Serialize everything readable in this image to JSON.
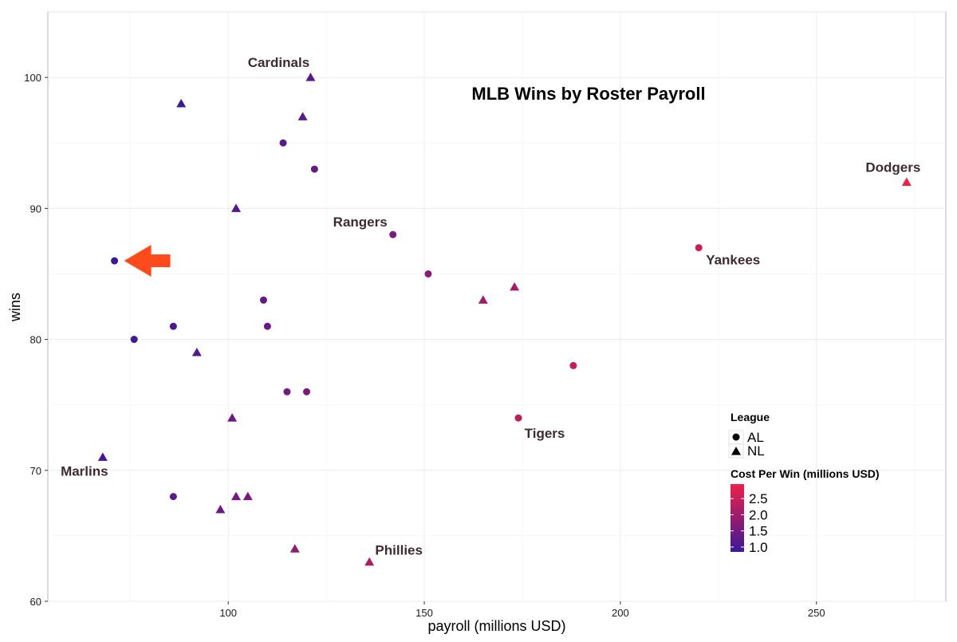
{
  "chart_data": {
    "type": "scatter",
    "title": "MLB Wins by Roster Payroll",
    "xlabel": "payroll (millions USD)",
    "ylabel": "wins",
    "xlim": [
      54,
      283
    ],
    "ylim": [
      60,
      105
    ],
    "x_ticks": [
      100,
      150,
      200,
      250
    ],
    "x_tick_labels": [
      "100",
      "150",
      "200",
      "250"
    ],
    "y_ticks": [
      60,
      70,
      80,
      90,
      100
    ],
    "y_tick_labels": [
      "60",
      "70",
      "80",
      "90",
      "100"
    ],
    "grid": true,
    "legend_placement": "bottom-right",
    "shape_legend": {
      "title": "League",
      "items": [
        {
          "label": "AL",
          "shape": "circle"
        },
        {
          "label": "NL",
          "shape": "triangle"
        }
      ]
    },
    "color_legend": {
      "title": "Cost Per Win (millions USD)",
      "min": 0.85,
      "max": 2.95,
      "low_color": "#3b1896",
      "high_color": "#ef2048",
      "ticks": [
        2.5,
        2.0,
        1.5,
        1.0
      ],
      "tick_labels": [
        "2.5",
        "2.0",
        "1.5",
        "1.0"
      ]
    },
    "highlight_arrow": {
      "x": 71,
      "y": 86,
      "color": "#ff4a1c"
    },
    "points": [
      {
        "x": 71,
        "y": 86,
        "league": "AL",
        "cost_per_win": 0.83
      },
      {
        "x": 76,
        "y": 80,
        "league": "AL",
        "cost_per_win": 0.95
      },
      {
        "x": 86,
        "y": 81,
        "league": "AL",
        "cost_per_win": 1.06
      },
      {
        "x": 86,
        "y": 68,
        "league": "AL",
        "cost_per_win": 1.26
      },
      {
        "x": 109,
        "y": 83,
        "league": "AL",
        "cost_per_win": 1.31
      },
      {
        "x": 110,
        "y": 81,
        "league": "AL",
        "cost_per_win": 1.36
      },
      {
        "x": 114,
        "y": 95,
        "league": "AL",
        "cost_per_win": 1.2
      },
      {
        "x": 115,
        "y": 76,
        "league": "AL",
        "cost_per_win": 1.51
      },
      {
        "x": 120,
        "y": 76,
        "league": "AL",
        "cost_per_win": 1.58
      },
      {
        "x": 122,
        "y": 93,
        "league": "AL",
        "cost_per_win": 1.31
      },
      {
        "x": 142,
        "y": 88,
        "league": "AL",
        "cost_per_win": 1.61,
        "label": "Rangers"
      },
      {
        "x": 151,
        "y": 85,
        "league": "AL",
        "cost_per_win": 1.78
      },
      {
        "x": 174,
        "y": 74,
        "league": "AL",
        "cost_per_win": 2.35,
        "label": "Tigers"
      },
      {
        "x": 188,
        "y": 78,
        "league": "AL",
        "cost_per_win": 2.4
      },
      {
        "x": 220,
        "y": 87,
        "league": "AL",
        "cost_per_win": 2.53,
        "label": "Yankees"
      },
      {
        "x": 68,
        "y": 71,
        "league": "NL",
        "cost_per_win": 0.96,
        "label": "Marlins"
      },
      {
        "x": 88,
        "y": 98,
        "league": "NL",
        "cost_per_win": 0.9
      },
      {
        "x": 92,
        "y": 79,
        "league": "NL",
        "cost_per_win": 1.16
      },
      {
        "x": 98,
        "y": 67,
        "league": "NL",
        "cost_per_win": 1.46
      },
      {
        "x": 101,
        "y": 74,
        "league": "NL",
        "cost_per_win": 1.36
      },
      {
        "x": 102,
        "y": 90,
        "league": "NL",
        "cost_per_win": 1.13
      },
      {
        "x": 102,
        "y": 68,
        "league": "NL",
        "cost_per_win": 1.5
      },
      {
        "x": 105,
        "y": 68,
        "league": "NL",
        "cost_per_win": 1.54
      },
      {
        "x": 117,
        "y": 64,
        "league": "NL",
        "cost_per_win": 1.83
      },
      {
        "x": 119,
        "y": 97,
        "league": "NL",
        "cost_per_win": 1.23
      },
      {
        "x": 121,
        "y": 100,
        "league": "NL",
        "cost_per_win": 1.21,
        "label": "Cardinals"
      },
      {
        "x": 136,
        "y": 63,
        "league": "NL",
        "cost_per_win": 2.16,
        "label": "Phillies"
      },
      {
        "x": 165,
        "y": 83,
        "league": "NL",
        "cost_per_win": 1.99
      },
      {
        "x": 173,
        "y": 84,
        "league": "NL",
        "cost_per_win": 2.06
      },
      {
        "x": 273,
        "y": 92,
        "league": "NL",
        "cost_per_win": 2.97,
        "label": "Dodgers"
      }
    ]
  }
}
